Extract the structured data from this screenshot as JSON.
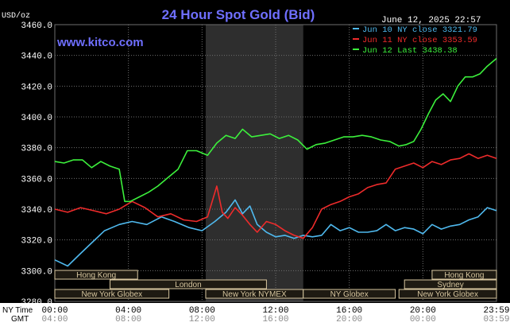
{
  "header": {
    "units": "USD/oz",
    "title": "24 Hour Spot Gold (Bid)",
    "timestamp": "June 12, 2025 22:57",
    "watermark": "www.kitco.com"
  },
  "colors": {
    "background": "#000000",
    "grid": "#6e6e6e",
    "shade": "#2e2e2e",
    "title": "#6f6fff",
    "watermark": "#6f6fff",
    "axis_text": "#ffffff",
    "bottom_text": "#000000",
    "session_box": "#d8c7a0",
    "session_fill": "#1e1a12"
  },
  "legend": [
    {
      "label": "Jun 10 NY close 3321.79",
      "color": "#4fb9ee"
    },
    {
      "label": "Jun 11 NY close 3353.59",
      "color": "#ee2b2b"
    },
    {
      "label": "Jun 12 Last 3438.38",
      "color": "#3cf03c"
    }
  ],
  "sessions": [
    {
      "label": "Hong Kong",
      "start_hour": 0,
      "end_hour": 4.5
    },
    {
      "label": "London",
      "start_hour": 3,
      "end_hour": 11.5
    },
    {
      "label": "New York Globex",
      "start_hour": 0,
      "end_hour": 6.2
    },
    {
      "label": "New York NYMEX",
      "start_hour": 8.2,
      "end_hour": 13.5
    },
    {
      "label": "NY Globex",
      "start_hour": 13.5,
      "end_hour": 18.5
    },
    {
      "label": "Hong Kong",
      "start_hour": 20.5,
      "end_hour": 24
    },
    {
      "label": "Sydney",
      "start_hour": 19,
      "end_hour": 24
    },
    {
      "label": "New York Globex",
      "start_hour": 18.7,
      "end_hour": 24
    }
  ],
  "bottom_axis": {
    "row1_label": "NY Time",
    "row2_label": "GMT",
    "ny_ticks": [
      "00:00",
      "04:00",
      "08:00",
      "12:00",
      "16:00",
      "20:00",
      "23:59"
    ],
    "gmt_ticks": [
      "04:00",
      "08:00",
      "12:00",
      "16:00",
      "20:00",
      "00:00",
      "03:59"
    ]
  },
  "chart_data": {
    "type": "line",
    "title": "24 Hour Spot Gold (Bid)",
    "ylabel": "USD/oz",
    "xlabel": "NY Time",
    "ylim": [
      3280,
      3460
    ],
    "xlim": [
      0,
      24
    ],
    "yticks": [
      "3280.0",
      "3300.0",
      "3320.0",
      "3340.0",
      "3360.0",
      "3380.0",
      "3400.0",
      "3420.0",
      "3440.0",
      "3460.0"
    ],
    "grid": true,
    "shaded_region_hours": [
      8.2,
      13.5
    ],
    "series": [
      {
        "name": "Jun 10 NY close 3321.79",
        "color": "#4fb9ee",
        "x": [
          0,
          0.7,
          1.3,
          2,
          2.7,
          3.5,
          4.2,
          5,
          5.8,
          6.5,
          7.3,
          8,
          8.7,
          9.3,
          9.8,
          10.2,
          10.6,
          11,
          11.5,
          12,
          12.5,
          13,
          13.5,
          14,
          14.5,
          15,
          15.5,
          16,
          16.5,
          17,
          17.5,
          18,
          18.5,
          19,
          19.5,
          20,
          20.5,
          21,
          21.5,
          22,
          22.5,
          23,
          23.5,
          24
        ],
        "y": [
          3307,
          3303,
          3310,
          3318,
          3326,
          3330,
          3332,
          3330,
          3335,
          3332,
          3328,
          3326,
          3332,
          3338,
          3346,
          3337,
          3342,
          3330,
          3325,
          3322,
          3323,
          3321,
          3323,
          3322,
          3323,
          3330,
          3326,
          3328,
          3325,
          3325,
          3326,
          3330,
          3326,
          3328,
          3327,
          3324,
          3330,
          3327,
          3329,
          3330,
          3333,
          3335,
          3341,
          3339
        ]
      },
      {
        "name": "Jun 11 NY close 3353.59",
        "color": "#ee2b2b",
        "x": [
          0,
          0.7,
          1.4,
          2.1,
          2.8,
          3.5,
          4.2,
          4.9,
          5.6,
          6.3,
          7,
          7.7,
          8.3,
          8.8,
          9.1,
          9.4,
          9.8,
          10.2,
          10.6,
          11,
          11.5,
          12,
          12.5,
          13,
          13.5,
          14,
          14.5,
          15,
          15.5,
          16,
          16.5,
          17,
          17.5,
          18,
          18.5,
          19,
          19.5,
          20,
          20.5,
          21,
          21.5,
          22,
          22.5,
          23,
          23.5,
          24
        ],
        "y": [
          3340,
          3338,
          3341,
          3339,
          3337,
          3340,
          3345,
          3341,
          3335,
          3337,
          3333,
          3332,
          3335,
          3355,
          3338,
          3334,
          3341,
          3336,
          3330,
          3325,
          3332,
          3330,
          3326,
          3323,
          3321,
          3328,
          3340,
          3343,
          3345,
          3348,
          3350,
          3354,
          3356,
          3357,
          3366,
          3368,
          3370,
          3367,
          3371,
          3369,
          3372,
          3373,
          3376,
          3373,
          3375,
          3373
        ]
      },
      {
        "name": "Jun 12 Last 3438.38",
        "color": "#3cf03c",
        "x": [
          0,
          0.5,
          1,
          1.5,
          2,
          2.5,
          3,
          3.5,
          3.8,
          4.1,
          4.6,
          5.1,
          5.6,
          6.1,
          6.7,
          7.2,
          7.7,
          8.3,
          8.8,
          9.3,
          9.8,
          10.2,
          10.7,
          11.2,
          11.7,
          12.2,
          12.7,
          13.2,
          13.7,
          14.2,
          14.7,
          15.2,
          15.7,
          16.2,
          16.7,
          17.2,
          17.7,
          18.2,
          18.7,
          19.1,
          19.5,
          19.9,
          20.3,
          20.7,
          21.1,
          21.5,
          21.9,
          22.3,
          22.7,
          23.1,
          23.5,
          24
        ],
        "y": [
          3371,
          3370,
          3372,
          3372,
          3367,
          3371,
          3368,
          3366,
          3345,
          3345,
          3348,
          3351,
          3355,
          3360,
          3366,
          3378,
          3378,
          3375,
          3383,
          3388,
          3386,
          3392,
          3387,
          3388,
          3389,
          3386,
          3388,
          3385,
          3379,
          3382,
          3383,
          3385,
          3387,
          3387,
          3388,
          3387,
          3385,
          3384,
          3381,
          3382,
          3384,
          3392,
          3402,
          3411,
          3415,
          3410,
          3420,
          3426,
          3426,
          3428,
          3433,
          3438
        ]
      }
    ]
  }
}
